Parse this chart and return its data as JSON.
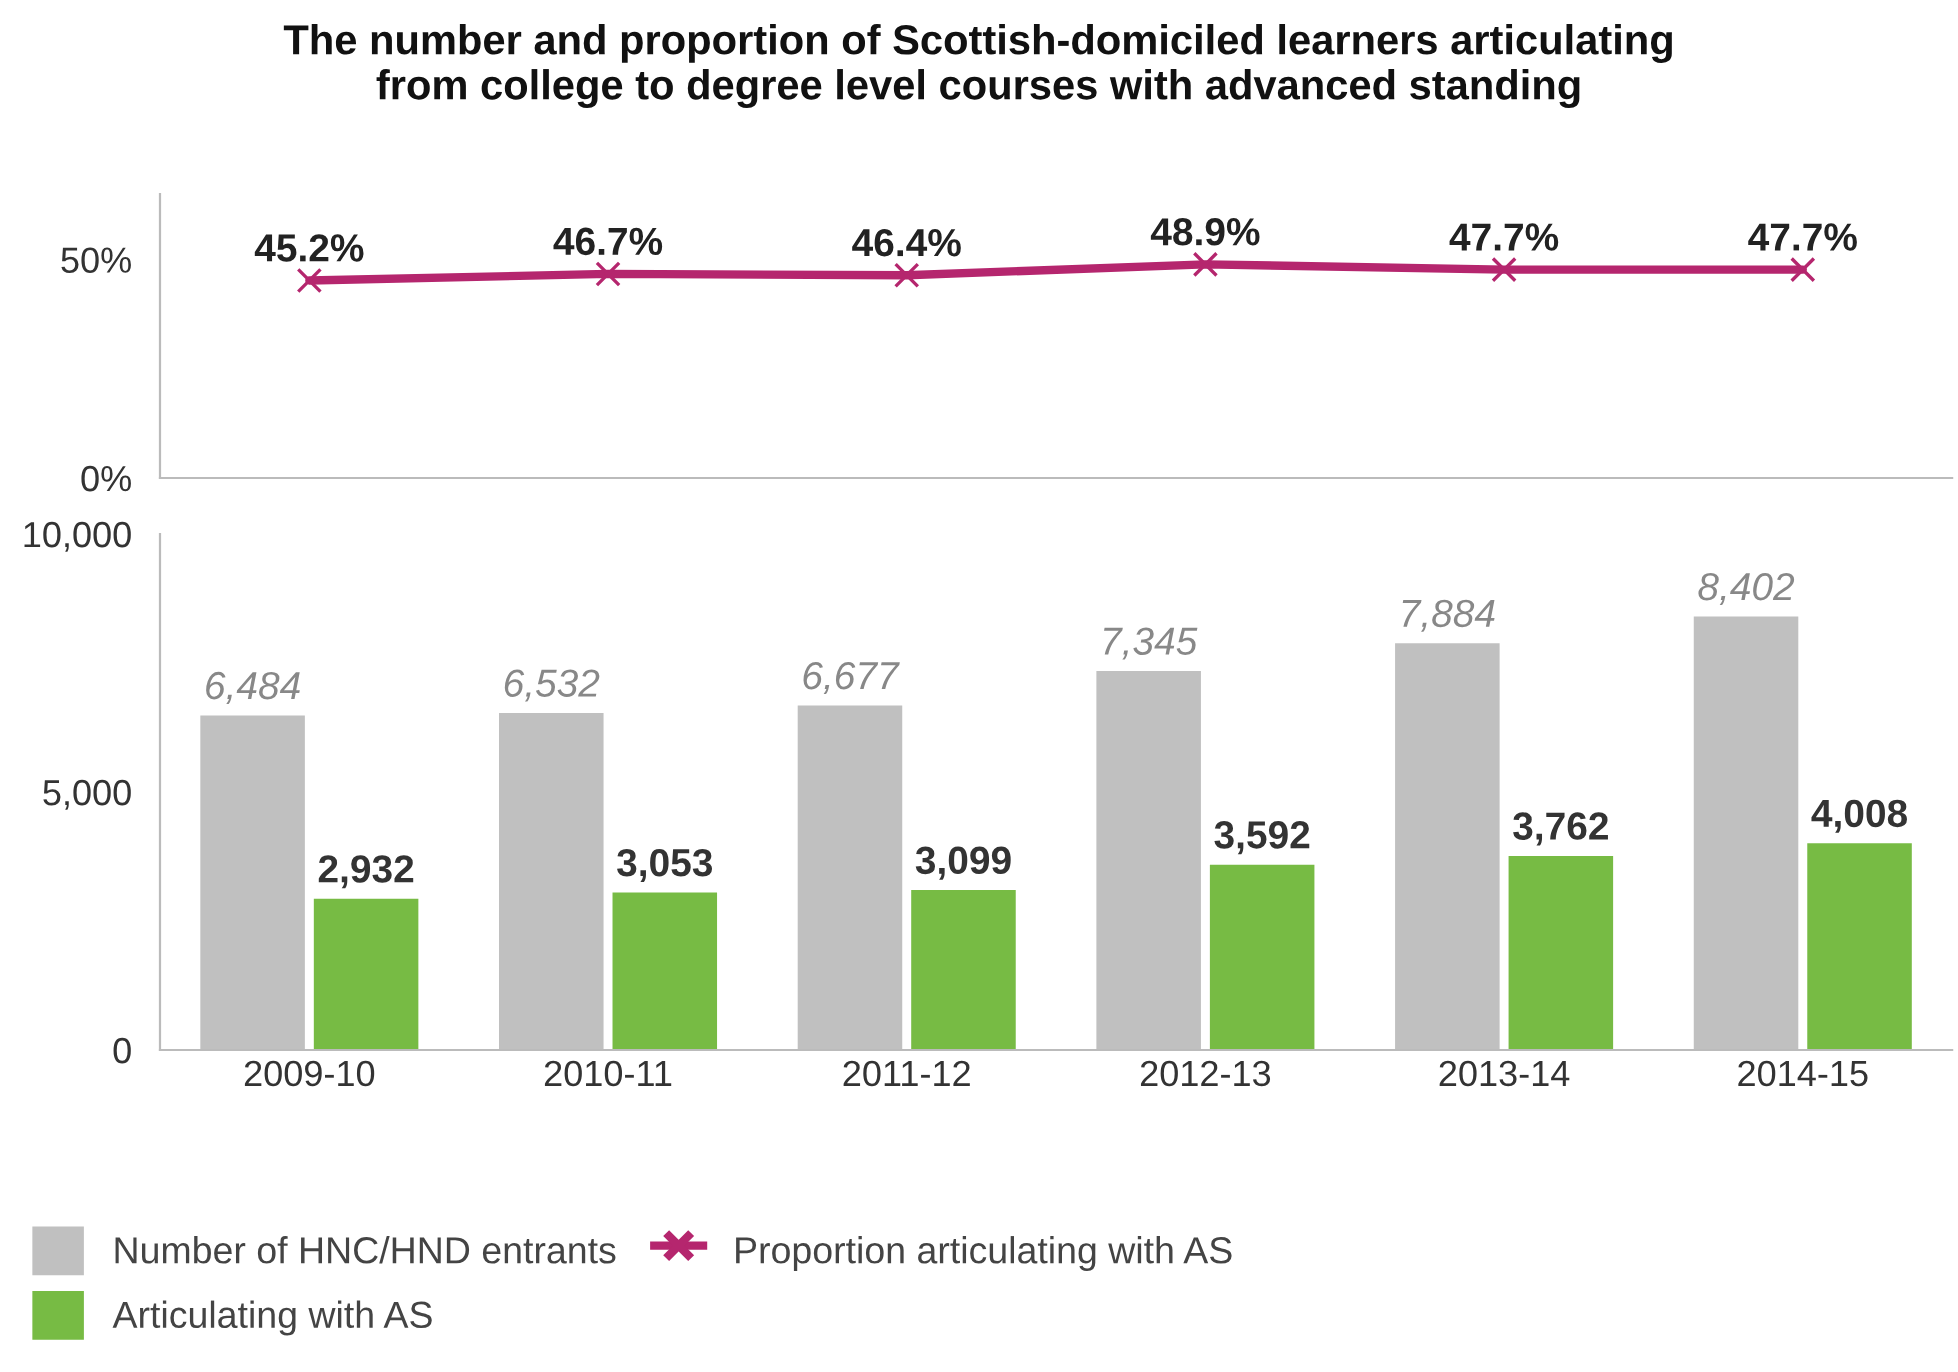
{
  "chart_data": [
    {
      "type": "line",
      "title": "The number and proportion of Scottish-domiciled learners articulating\nfrom college to degree level courses with advanced standing",
      "categories": [
        "2009-10",
        "2010-11",
        "2011-12",
        "2012-13",
        "2013-14",
        "2014-15"
      ],
      "series": [
        {
          "name": "Proportion articulating with AS",
          "color": "#b5266e",
          "values": [
            45.2,
            46.7,
            46.4,
            48.9,
            47.7,
            47.7
          ],
          "value_labels": [
            "45.2%",
            "46.7%",
            "46.4%",
            "48.9%",
            "47.7%",
            "47.7%"
          ]
        }
      ],
      "ylim": [
        0,
        65
      ],
      "yticks": [
        {
          "value": 0,
          "label": "0%"
        },
        {
          "value": 50,
          "label": "50%"
        }
      ],
      "tick_labels": "y",
      "marker": "cross",
      "grid": false,
      "legend": "bottom left"
    },
    {
      "type": "bar",
      "categories": [
        "2009-10",
        "2010-11",
        "2011-12",
        "2012-13",
        "2013-14",
        "2014-15"
      ],
      "series": [
        {
          "name": "Number of HNC/HND entrants",
          "color": "#c0c0c0",
          "values": [
            6484,
            6532,
            6677,
            7345,
            7884,
            8402
          ],
          "value_labels": [
            "6,484",
            "6,532",
            "6,677",
            "7,345",
            "7,884",
            "8,402"
          ]
        },
        {
          "name": "Articulating with AS",
          "color": "#77bb44",
          "values": [
            2932,
            3053,
            3099,
            3592,
            3762,
            4008
          ],
          "value_labels": [
            "2,932",
            "3,053",
            "3,099",
            "3,592",
            "3,762",
            "4,008"
          ]
        }
      ],
      "ylim": [
        0,
        10000
      ],
      "yticks": [
        {
          "value": 0,
          "label": "0"
        },
        {
          "value": 5000,
          "label": "5,000"
        },
        {
          "value": 10000,
          "label": "10,000"
        }
      ],
      "grid": false,
      "legend": "bottom left"
    }
  ]
}
